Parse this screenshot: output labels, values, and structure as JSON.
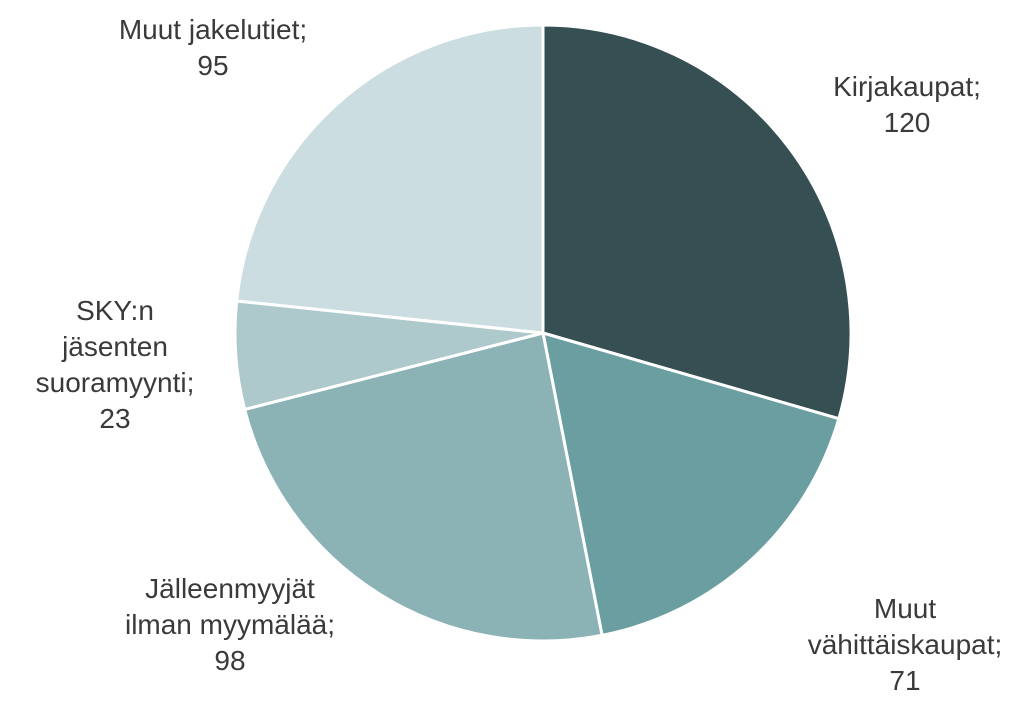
{
  "chart_data": {
    "type": "pie",
    "categories": [
      "Kirjakaupat;",
      "Muut vähittäiskaupat;",
      "Jälleenmyyjät ilman myymälää;",
      "SKY:n jäsenten suoramyynti;",
      "Muut jakelutiet;"
    ],
    "values": [
      120,
      71,
      98,
      23,
      95
    ],
    "colors": [
      "#354f52",
      "#6a9ea0",
      "#8bb2b5",
      "#adc9cb",
      "#cbdde0"
    ]
  }
}
